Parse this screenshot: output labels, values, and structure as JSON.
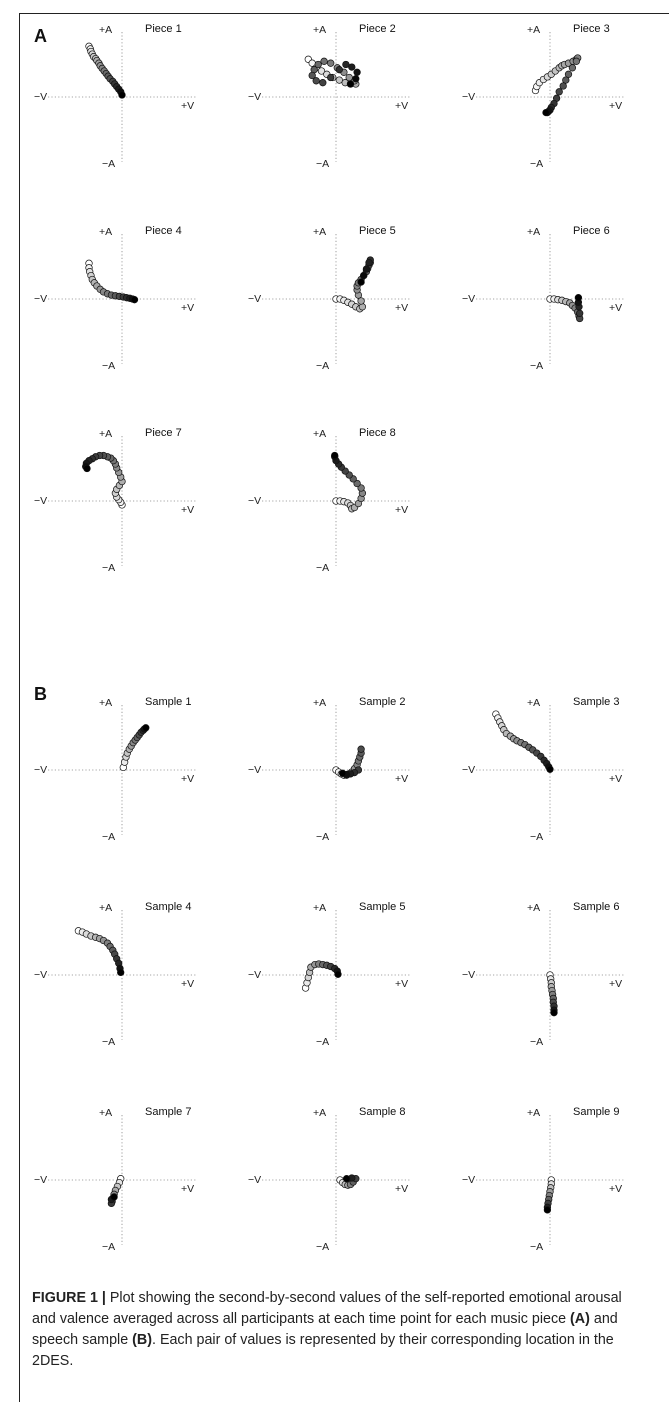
{
  "panels": [
    {
      "label": "A"
    },
    {
      "label": "B"
    }
  ],
  "axis_labels": {
    "pos_a": "+A",
    "neg_a": "−A",
    "pos_v": "+V",
    "neg_v": "−V"
  },
  "chart_data": [
    {
      "type": "scatter",
      "title": "Piece 1",
      "xlabel": "",
      "ylabel": "",
      "xlim": [
        -1,
        1
      ],
      "ylim": [
        -1,
        1
      ],
      "grid": false,
      "x": [
        -0.5,
        -0.48,
        -0.47,
        -0.45,
        -0.43,
        -0.4,
        -0.38,
        -0.35,
        -0.33,
        -0.3,
        -0.27,
        -0.24,
        -0.21,
        -0.18,
        -0.14,
        -0.11,
        -0.08,
        -0.05,
        -0.02,
        0.0
      ],
      "y": [
        0.78,
        0.74,
        0.7,
        0.66,
        0.62,
        0.59,
        0.56,
        0.52,
        0.48,
        0.44,
        0.4,
        0.36,
        0.32,
        0.28,
        0.24,
        0.2,
        0.16,
        0.12,
        0.08,
        0.03
      ]
    },
    {
      "type": "scatter",
      "title": "Piece 2",
      "xlabel": "",
      "ylabel": "",
      "xlim": [
        -1,
        1
      ],
      "ylim": [
        -1,
        1
      ],
      "grid": false,
      "x": [
        -0.42,
        -0.36,
        -0.3,
        -0.22,
        -0.14,
        -0.05,
        0.05,
        0.14,
        0.22,
        0.3,
        0.28,
        0.2,
        0.12,
        0.02,
        -0.08,
        -0.18,
        -0.27,
        -0.33,
        -0.36,
        -0.3,
        -0.2,
        -0.08,
        0.05,
        0.15,
        0.24,
        0.32,
        0.3,
        0.22
      ],
      "y": [
        0.58,
        0.52,
        0.45,
        0.4,
        0.35,
        0.3,
        0.26,
        0.22,
        0.2,
        0.2,
        0.25,
        0.3,
        0.38,
        0.45,
        0.52,
        0.55,
        0.5,
        0.42,
        0.33,
        0.25,
        0.22,
        0.3,
        0.42,
        0.5,
        0.46,
        0.38,
        0.28,
        0.2
      ]
    },
    {
      "type": "scatter",
      "title": "Piece 3",
      "xlabel": "",
      "ylabel": "",
      "xlim": [
        -1,
        1
      ],
      "ylim": [
        -1,
        1
      ],
      "grid": false,
      "x": [
        -0.22,
        -0.2,
        -0.16,
        -0.1,
        -0.04,
        0.02,
        0.08,
        0.14,
        0.18,
        0.22,
        0.28,
        0.35,
        0.4,
        0.42,
        0.4,
        0.34,
        0.28,
        0.24,
        0.2,
        0.14,
        0.1,
        0.06,
        0.02,
        0.0,
        -0.02,
        -0.04,
        -0.06
      ],
      "y": [
        0.1,
        0.16,
        0.22,
        0.27,
        0.31,
        0.35,
        0.4,
        0.45,
        0.48,
        0.5,
        0.52,
        0.55,
        0.58,
        0.6,
        0.55,
        0.45,
        0.35,
        0.26,
        0.17,
        0.08,
        -0.02,
        -0.1,
        -0.16,
        -0.2,
        -0.22,
        -0.24,
        -0.24
      ]
    },
    {
      "type": "scatter",
      "title": "Piece 4",
      "xlabel": "",
      "ylabel": "",
      "xlim": [
        -1,
        1
      ],
      "ylim": [
        -1,
        1
      ],
      "grid": false,
      "x": [
        -0.5,
        -0.5,
        -0.49,
        -0.47,
        -0.45,
        -0.42,
        -0.38,
        -0.33,
        -0.28,
        -0.22,
        -0.16,
        -0.1,
        -0.04,
        0.02,
        0.07,
        0.12,
        0.16,
        0.19
      ],
      "y": [
        0.55,
        0.48,
        0.42,
        0.36,
        0.3,
        0.25,
        0.2,
        0.15,
        0.11,
        0.08,
        0.06,
        0.05,
        0.04,
        0.03,
        0.02,
        0.01,
        0.0,
        -0.01
      ]
    },
    {
      "type": "scatter",
      "title": "Piece 5",
      "xlabel": "",
      "ylabel": "",
      "xlim": [
        -1,
        1
      ],
      "ylim": [
        -1,
        1
      ],
      "grid": false,
      "x": [
        0.0,
        0.06,
        0.12,
        0.18,
        0.24,
        0.3,
        0.36,
        0.4,
        0.38,
        0.34,
        0.32,
        0.32,
        0.34,
        0.38,
        0.42,
        0.46,
        0.48,
        0.5,
        0.52,
        0.52,
        0.5,
        0.46,
        0.42,
        0.38
      ],
      "y": [
        0.0,
        0.0,
        -0.02,
        -0.05,
        -0.08,
        -0.12,
        -0.15,
        -0.12,
        -0.03,
        0.06,
        0.14,
        0.2,
        0.25,
        0.3,
        0.36,
        0.42,
        0.47,
        0.52,
        0.56,
        0.6,
        0.56,
        0.46,
        0.36,
        0.26
      ]
    },
    {
      "type": "scatter",
      "title": "Piece 6",
      "xlabel": "",
      "ylabel": "",
      "xlim": [
        -1,
        1
      ],
      "ylim": [
        -1,
        1
      ],
      "grid": false,
      "x": [
        0.0,
        0.06,
        0.12,
        0.18,
        0.24,
        0.3,
        0.34,
        0.38,
        0.42,
        0.44,
        0.45,
        0.45,
        0.44,
        0.43,
        0.43
      ],
      "y": [
        0.0,
        0.0,
        -0.01,
        -0.02,
        -0.04,
        -0.06,
        -0.1,
        -0.14,
        -0.2,
        -0.26,
        -0.3,
        -0.22,
        -0.12,
        -0.05,
        0.02
      ]
    },
    {
      "type": "scatter",
      "title": "Piece 7",
      "xlabel": "",
      "ylabel": "",
      "xlim": [
        -1,
        1
      ],
      "ylim": [
        -1,
        1
      ],
      "grid": false,
      "x": [
        -0.0,
        -0.02,
        -0.05,
        -0.08,
        -0.1,
        -0.08,
        -0.04,
        0.0,
        -0.02,
        -0.05,
        -0.08,
        -0.1,
        -0.13,
        -0.17,
        -0.22,
        -0.28,
        -0.34,
        -0.4,
        -0.45,
        -0.5,
        -0.54,
        -0.55,
        -0.53
      ],
      "y": [
        -0.06,
        -0.02,
        0.02,
        0.06,
        0.12,
        0.18,
        0.24,
        0.3,
        0.37,
        0.44,
        0.51,
        0.57,
        0.62,
        0.66,
        0.68,
        0.7,
        0.7,
        0.68,
        0.65,
        0.62,
        0.58,
        0.53,
        0.5
      ]
    },
    {
      "type": "scatter",
      "title": "Piece 8",
      "xlabel": "",
      "ylabel": "",
      "xlim": [
        -1,
        1
      ],
      "ylim": [
        -1,
        1
      ],
      "grid": false,
      "x": [
        0.0,
        0.06,
        0.12,
        0.18,
        0.22,
        0.24,
        0.28,
        0.34,
        0.38,
        0.4,
        0.38,
        0.32,
        0.26,
        0.2,
        0.14,
        0.08,
        0.04,
        0.0,
        -0.02,
        -0.02
      ],
      "y": [
        0.0,
        0.0,
        -0.01,
        -0.03,
        -0.07,
        -0.12,
        -0.1,
        -0.04,
        0.04,
        0.12,
        0.2,
        0.27,
        0.34,
        0.4,
        0.46,
        0.52,
        0.57,
        0.62,
        0.68,
        0.7
      ]
    },
    {
      "type": "scatter",
      "title": "Sample 1",
      "xlabel": "",
      "ylabel": "",
      "xlim": [
        -1,
        1
      ],
      "ylim": [
        -1,
        1
      ],
      "grid": false,
      "x": [
        0.02,
        0.04,
        0.06,
        0.08,
        0.11,
        0.14,
        0.17,
        0.2,
        0.23,
        0.26,
        0.29,
        0.32,
        0.34,
        0.36
      ],
      "y": [
        0.04,
        0.12,
        0.2,
        0.26,
        0.32,
        0.37,
        0.42,
        0.46,
        0.5,
        0.54,
        0.58,
        0.61,
        0.63,
        0.65
      ]
    },
    {
      "type": "scatter",
      "title": "Sample 2",
      "xlabel": "",
      "ylabel": "",
      "xlim": [
        -1,
        1
      ],
      "ylim": [
        -1,
        1
      ],
      "grid": false,
      "x": [
        0.0,
        0.04,
        0.08,
        0.12,
        0.16,
        0.2,
        0.24,
        0.28,
        0.32,
        0.34,
        0.36,
        0.38,
        0.38,
        0.34,
        0.28,
        0.22,
        0.16,
        0.1
      ],
      "y": [
        0.0,
        -0.03,
        -0.06,
        -0.08,
        -0.08,
        -0.06,
        -0.03,
        0.02,
        0.08,
        0.14,
        0.2,
        0.26,
        0.32,
        0.0,
        -0.04,
        -0.06,
        -0.07,
        -0.05
      ]
    },
    {
      "type": "scatter",
      "title": "Sample 3",
      "xlabel": "",
      "ylabel": "",
      "xlim": [
        -1,
        1
      ],
      "ylim": [
        -1,
        1
      ],
      "grid": false,
      "x": [
        -0.82,
        -0.79,
        -0.76,
        -0.73,
        -0.7,
        -0.66,
        -0.6,
        -0.55,
        -0.5,
        -0.44,
        -0.38,
        -0.32,
        -0.26,
        -0.2,
        -0.14,
        -0.09,
        -0.05,
        -0.02,
        -0.0
      ],
      "y": [
        0.86,
        0.8,
        0.74,
        0.68,
        0.62,
        0.56,
        0.52,
        0.48,
        0.45,
        0.42,
        0.39,
        0.35,
        0.31,
        0.26,
        0.21,
        0.15,
        0.1,
        0.05,
        0.01
      ]
    },
    {
      "type": "scatter",
      "title": "Sample 4",
      "xlabel": "",
      "ylabel": "",
      "xlim": [
        -1,
        1
      ],
      "ylim": [
        -1,
        1
      ],
      "grid": false,
      "x": [
        -0.66,
        -0.6,
        -0.54,
        -0.47,
        -0.4,
        -0.34,
        -0.28,
        -0.22,
        -0.18,
        -0.14,
        -0.11,
        -0.08,
        -0.05,
        -0.03,
        -0.02
      ],
      "y": [
        0.68,
        0.66,
        0.63,
        0.6,
        0.58,
        0.56,
        0.53,
        0.49,
        0.44,
        0.38,
        0.32,
        0.25,
        0.18,
        0.1,
        0.04
      ]
    },
    {
      "type": "scatter",
      "title": "Sample 5",
      "xlabel": "",
      "ylabel": "",
      "xlim": [
        -1,
        1
      ],
      "ylim": [
        -1,
        1
      ],
      "grid": false,
      "x": [
        -0.46,
        -0.44,
        -0.42,
        -0.4,
        -0.38,
        -0.32,
        -0.26,
        -0.2,
        -0.14,
        -0.08,
        -0.02,
        0.02,
        0.03
      ],
      "y": [
        -0.2,
        -0.12,
        -0.04,
        0.04,
        0.12,
        0.16,
        0.17,
        0.16,
        0.15,
        0.13,
        0.1,
        0.06,
        0.01
      ]
    },
    {
      "type": "scatter",
      "title": "Sample 6",
      "xlabel": "",
      "ylabel": "",
      "xlim": [
        -1,
        1
      ],
      "ylim": [
        -1,
        1
      ],
      "grid": false,
      "x": [
        0.0,
        0.01,
        0.02,
        0.02,
        0.03,
        0.04,
        0.05,
        0.05,
        0.06,
        0.06,
        0.06
      ],
      "y": [
        0.0,
        -0.06,
        -0.12,
        -0.18,
        -0.24,
        -0.3,
        -0.36,
        -0.42,
        -0.48,
        -0.54,
        -0.58
      ]
    },
    {
      "type": "scatter",
      "title": "Sample 7",
      "xlabel": "",
      "ylabel": "",
      "xlim": [
        -1,
        1
      ],
      "ylim": [
        -1,
        1
      ],
      "grid": false,
      "x": [
        -0.02,
        -0.04,
        -0.07,
        -0.1,
        -0.12,
        -0.14,
        -0.15,
        -0.16,
        -0.16,
        -0.12
      ],
      "y": [
        0.02,
        -0.04,
        -0.1,
        -0.16,
        -0.22,
        -0.28,
        -0.33,
        -0.36,
        -0.3,
        -0.26
      ]
    },
    {
      "type": "scatter",
      "title": "Sample 8",
      "xlabel": "",
      "ylabel": "",
      "xlim": [
        -1,
        1
      ],
      "ylim": [
        -1,
        1
      ],
      "grid": false,
      "x": [
        0.06,
        0.1,
        0.14,
        0.18,
        0.22,
        0.26,
        0.3,
        0.24,
        0.16
      ],
      "y": [
        0.0,
        -0.04,
        -0.07,
        -0.08,
        -0.07,
        -0.03,
        0.02,
        0.03,
        0.02
      ]
    },
    {
      "type": "scatter",
      "title": "Sample 9",
      "xlabel": "",
      "ylabel": "",
      "xlim": [
        -1,
        1
      ],
      "ylim": [
        -1,
        1
      ],
      "grid": false,
      "x": [
        0.02,
        0.02,
        0.01,
        0.0,
        -0.01,
        -0.02,
        -0.03,
        -0.04,
        -0.04
      ],
      "y": [
        0.0,
        -0.06,
        -0.12,
        -0.18,
        -0.24,
        -0.3,
        -0.36,
        -0.42,
        -0.46
      ]
    }
  ],
  "caption": {
    "label": "FIGURE 1 |",
    "part1": " Plot showing the second-by-second values of the self-reported emotional arousal and valence averaged across all participants at each time point for each music piece ",
    "ref_a": "(A)",
    "part2": " and speech sample ",
    "ref_b": "(B)",
    "part3": ". Each pair of values is represented by their corresponding location in the 2DES."
  }
}
